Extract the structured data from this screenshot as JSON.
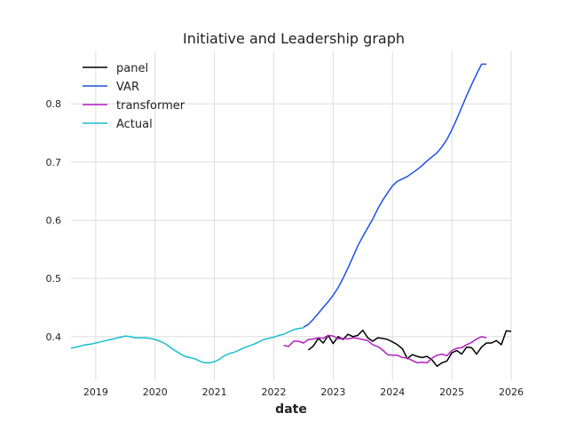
{
  "chart_data": {
    "type": "line",
    "title": "Initiative and Leadership graph",
    "xlabel": "date",
    "ylabel": "",
    "xlim": [
      "2018-08",
      "2026-01"
    ],
    "ylim": [
      0.325,
      0.89
    ],
    "grid": true,
    "legend_position": "top-left",
    "x_ticks": [
      "2019",
      "2020",
      "2021",
      "2022",
      "2023",
      "2024",
      "2025",
      "2026"
    ],
    "y_ticks": [
      "0.4",
      "0.5",
      "0.6",
      "0.7",
      "0.8"
    ],
    "series": [
      {
        "name": "panel",
        "color": "#000000",
        "x": [
          "2022-08",
          "2022-09",
          "2022-10",
          "2022-11",
          "2022-12",
          "2023-01",
          "2023-02",
          "2023-03",
          "2023-04",
          "2023-05",
          "2023-06",
          "2023-07",
          "2023-08",
          "2023-09",
          "2023-10",
          "2023-11",
          "2023-12",
          "2024-01",
          "2024-02",
          "2024-03",
          "2024-04",
          "2024-05",
          "2024-06",
          "2024-07",
          "2024-08",
          "2024-09",
          "2024-10",
          "2024-11",
          "2024-12",
          "2025-01",
          "2025-02",
          "2025-03",
          "2025-04",
          "2025-05",
          "2025-06",
          "2025-07",
          "2025-08",
          "2025-09",
          "2025-10",
          "2025-11",
          "2025-12",
          "2026-01"
        ],
        "y": [
          0.377,
          0.384,
          0.397,
          0.389,
          0.402,
          0.388,
          0.4,
          0.395,
          0.404,
          0.4,
          0.402,
          0.411,
          0.398,
          0.392,
          0.398,
          0.397,
          0.395,
          0.391,
          0.386,
          0.379,
          0.362,
          0.369,
          0.366,
          0.364,
          0.366,
          0.36,
          0.349,
          0.355,
          0.358,
          0.372,
          0.376,
          0.37,
          0.382,
          0.381,
          0.37,
          0.382,
          0.389,
          0.389,
          0.393,
          0.386,
          0.41,
          0.409
        ]
      },
      {
        "name": "VAR",
        "color": "#1f4ee8",
        "x": [
          "2022-07",
          "2022-08",
          "2022-09",
          "2022-10",
          "2022-11",
          "2022-12",
          "2023-01",
          "2023-02",
          "2023-03",
          "2023-04",
          "2023-05",
          "2023-06",
          "2023-07",
          "2023-08",
          "2023-09",
          "2023-10",
          "2023-11",
          "2023-12",
          "2024-01",
          "2024-02",
          "2024-03",
          "2024-04",
          "2024-05",
          "2024-06",
          "2024-07",
          "2024-08",
          "2024-09",
          "2024-10",
          "2024-11",
          "2024-12",
          "2025-01",
          "2025-02",
          "2025-03",
          "2025-04",
          "2025-05",
          "2025-06",
          "2025-07",
          "2025-08"
        ],
        "y": [
          0.416,
          0.421,
          0.43,
          0.44,
          0.45,
          0.46,
          0.471,
          0.484,
          0.5,
          0.518,
          0.537,
          0.556,
          0.572,
          0.587,
          0.602,
          0.619,
          0.634,
          0.647,
          0.659,
          0.667,
          0.671,
          0.675,
          0.681,
          0.687,
          0.694,
          0.702,
          0.709,
          0.716,
          0.726,
          0.739,
          0.755,
          0.774,
          0.794,
          0.814,
          0.833,
          0.851,
          0.868,
          0.868
        ]
      },
      {
        "name": "transformer",
        "color": "#b41ebf",
        "x": [
          "2022-03",
          "2022-04",
          "2022-05",
          "2022-06",
          "2022-07",
          "2022-08",
          "2022-09",
          "2022-10",
          "2022-11",
          "2022-12",
          "2023-01",
          "2023-02",
          "2023-03",
          "2023-04",
          "2023-05",
          "2023-06",
          "2023-07",
          "2023-08",
          "2023-09",
          "2023-10",
          "2023-11",
          "2023-12",
          "2024-01",
          "2024-02",
          "2024-03",
          "2024-04",
          "2024-05",
          "2024-06",
          "2024-07",
          "2024-08",
          "2024-09",
          "2024-10",
          "2024-11",
          "2024-12",
          "2025-01",
          "2025-02",
          "2025-03",
          "2025-04",
          "2025-05",
          "2025-06",
          "2025-07",
          "2025-08"
        ],
        "y": [
          0.385,
          0.383,
          0.392,
          0.392,
          0.389,
          0.395,
          0.396,
          0.398,
          0.397,
          0.402,
          0.401,
          0.396,
          0.397,
          0.396,
          0.398,
          0.397,
          0.395,
          0.393,
          0.386,
          0.383,
          0.377,
          0.369,
          0.368,
          0.368,
          0.364,
          0.363,
          0.359,
          0.355,
          0.356,
          0.355,
          0.363,
          0.368,
          0.37,
          0.367,
          0.376,
          0.38,
          0.381,
          0.386,
          0.39,
          0.396,
          0.4,
          0.398
        ]
      },
      {
        "name": "Actual",
        "color": "#17becf",
        "x": [
          "2018-08",
          "2018-09",
          "2018-10",
          "2018-11",
          "2018-12",
          "2019-01",
          "2019-02",
          "2019-03",
          "2019-04",
          "2019-05",
          "2019-06",
          "2019-07",
          "2019-08",
          "2019-09",
          "2019-10",
          "2019-11",
          "2019-12",
          "2020-01",
          "2020-02",
          "2020-03",
          "2020-04",
          "2020-05",
          "2020-06",
          "2020-07",
          "2020-08",
          "2020-09",
          "2020-10",
          "2020-11",
          "2020-12",
          "2021-01",
          "2021-02",
          "2021-03",
          "2021-04",
          "2021-05",
          "2021-06",
          "2021-07",
          "2021-08",
          "2021-09",
          "2021-10",
          "2021-11",
          "2021-12",
          "2022-01",
          "2022-02",
          "2022-03",
          "2022-04",
          "2022-05",
          "2022-06",
          "2022-07"
        ],
        "y": [
          0.38,
          0.382,
          0.384,
          0.386,
          0.387,
          0.389,
          0.391,
          0.393,
          0.395,
          0.397,
          0.399,
          0.401,
          0.4,
          0.398,
          0.398,
          0.398,
          0.397,
          0.395,
          0.392,
          0.388,
          0.382,
          0.376,
          0.371,
          0.366,
          0.364,
          0.362,
          0.358,
          0.355,
          0.355,
          0.357,
          0.361,
          0.367,
          0.371,
          0.373,
          0.377,
          0.381,
          0.384,
          0.387,
          0.391,
          0.395,
          0.397,
          0.399,
          0.402,
          0.404,
          0.408,
          0.412,
          0.414,
          0.415
        ]
      }
    ]
  }
}
